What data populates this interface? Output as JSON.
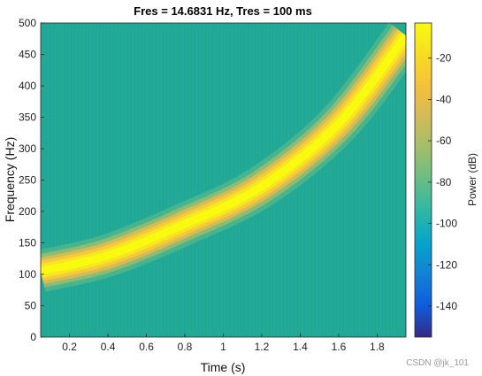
{
  "chart_data": {
    "type": "heatmap",
    "title": "Fres = 14.6831 Hz, Tres = 100 ms",
    "xlabel": "Time (s)",
    "ylabel": "Frequency (Hz)",
    "xlim": [
      0.05,
      1.95
    ],
    "ylim": [
      0,
      500
    ],
    "x_ticks": [
      0.2,
      0.4,
      0.6,
      0.8,
      1,
      1.2,
      1.4,
      1.6,
      1.8
    ],
    "x_tick_labels": [
      "0.2",
      "0.4",
      "0.6",
      "0.8",
      "1",
      "1.2",
      "1.4",
      "1.6",
      "1.8"
    ],
    "y_ticks": [
      0,
      50,
      100,
      150,
      200,
      250,
      300,
      350,
      400,
      450,
      500
    ],
    "y_tick_labels": [
      "0",
      "50",
      "100",
      "150",
      "200",
      "250",
      "300",
      "350",
      "400",
      "450",
      "500"
    ],
    "colorbar": {
      "label": "Power (dB)",
      "clim": [
        -155,
        -3
      ],
      "ticks": [
        -20,
        -40,
        -60,
        -80,
        -100,
        -120,
        -140
      ],
      "tick_labels": [
        "-20",
        "-40",
        "-60",
        "-80",
        "-100",
        "-120",
        "-140"
      ],
      "colormap": "parula"
    },
    "ridge": {
      "description_units": "frequency in Hz versus time in s",
      "time": [
        0.05,
        0.4,
        0.8,
        1.2,
        1.6,
        1.95
      ],
      "frequency": [
        105,
        130,
        180,
        240,
        340,
        480
      ],
      "peak_power_db": -3
    },
    "background_power_db": -75
  },
  "watermark": "CSDN @jk_101",
  "colors": {
    "background": "#22aa94",
    "ridge_peak": "#f9fb0e",
    "axis": "#262626"
  }
}
